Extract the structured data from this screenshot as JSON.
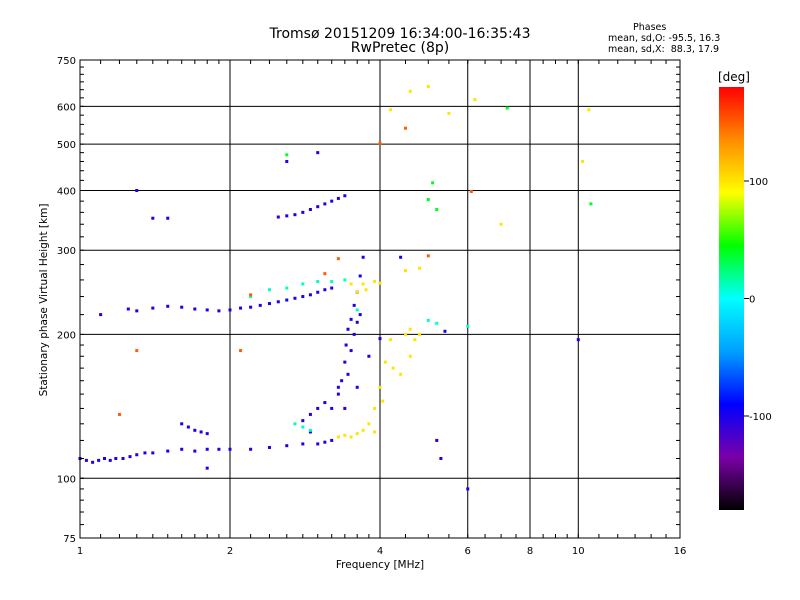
{
  "chart_data": {
    "type": "scatter",
    "title": "Tromsø 20151209 16:34:00-16:35:43",
    "subtitle": "RwPretec (8p)",
    "xlabel": "Frequency [MHz]",
    "ylabel": "Stationary phase Virtual Height [km]",
    "x_scale": "log",
    "y_scale": "log",
    "xlim": [
      1,
      16
    ],
    "ylim": [
      75,
      750
    ],
    "x_ticks": [
      1,
      2,
      4,
      6,
      8,
      10,
      16
    ],
    "y_ticks": [
      75,
      100,
      200,
      300,
      400,
      500,
      600,
      750
    ],
    "grid": true,
    "phase_stats": {
      "heading": "Phases",
      "line_o": "mean, sd,O: -95.5, 16.3",
      "line_x": "mean, sd,X:  88.3, 17.9"
    },
    "colorbar": {
      "unit": "[deg]",
      "ticks": [
        100,
        0,
        -100
      ],
      "range": [
        -180,
        180
      ],
      "colormap": [
        "#000000",
        "#7a00a8",
        "#0000ff",
        "#00a0ff",
        "#00ffff",
        "#00ff00",
        "#ffff00",
        "#ff8c00",
        "#ff0000"
      ]
    },
    "series": [
      {
        "phase_deg": -100,
        "points": [
          [
            1.0,
            110
          ],
          [
            1.03,
            109
          ],
          [
            1.06,
            108
          ],
          [
            1.09,
            109
          ],
          [
            1.12,
            110
          ],
          [
            1.15,
            109
          ],
          [
            1.18,
            110
          ],
          [
            1.22,
            110
          ],
          [
            1.26,
            111
          ],
          [
            1.3,
            112
          ],
          [
            1.35,
            113
          ],
          [
            1.4,
            113
          ],
          [
            1.5,
            114
          ],
          [
            1.6,
            115
          ],
          [
            1.7,
            114
          ],
          [
            1.8,
            115
          ],
          [
            1.9,
            115
          ],
          [
            2.0,
            115
          ],
          [
            2.2,
            115
          ],
          [
            2.4,
            116
          ],
          [
            2.6,
            117
          ],
          [
            2.8,
            118
          ],
          [
            3.0,
            118
          ],
          [
            3.1,
            119
          ],
          [
            3.2,
            120
          ],
          [
            1.25,
            226
          ],
          [
            1.3,
            224
          ],
          [
            1.4,
            227
          ],
          [
            1.5,
            229
          ],
          [
            1.6,
            228
          ],
          [
            1.7,
            226
          ],
          [
            1.8,
            225
          ],
          [
            1.9,
            224
          ],
          [
            2.0,
            225
          ],
          [
            2.1,
            227
          ],
          [
            2.2,
            228
          ],
          [
            2.3,
            230
          ],
          [
            2.4,
            232
          ],
          [
            2.5,
            234
          ],
          [
            2.6,
            236
          ],
          [
            2.7,
            238
          ],
          [
            2.8,
            240
          ],
          [
            2.9,
            242
          ],
          [
            3.0,
            245
          ],
          [
            3.1,
            248
          ],
          [
            3.2,
            250
          ],
          [
            2.5,
            352
          ],
          [
            2.6,
            354
          ],
          [
            2.7,
            356
          ],
          [
            2.8,
            360
          ],
          [
            2.9,
            365
          ],
          [
            3.0,
            370
          ],
          [
            3.1,
            375
          ],
          [
            3.2,
            380
          ],
          [
            3.3,
            385
          ],
          [
            3.4,
            390
          ],
          [
            3.3,
            150
          ],
          [
            3.35,
            160
          ],
          [
            3.4,
            175
          ],
          [
            3.42,
            190
          ],
          [
            3.45,
            205
          ],
          [
            3.5,
            215
          ],
          [
            3.55,
            230
          ],
          [
            3.6,
            245
          ],
          [
            3.65,
            265
          ],
          [
            3.7,
            290
          ],
          [
            3.4,
            140
          ],
          [
            3.45,
            165
          ],
          [
            3.5,
            185
          ],
          [
            3.55,
            200
          ],
          [
            3.6,
            212
          ],
          [
            3.65,
            220
          ],
          [
            1.6,
            130
          ],
          [
            1.65,
            128
          ],
          [
            1.7,
            126
          ],
          [
            1.75,
            125
          ],
          [
            1.8,
            124
          ],
          [
            2.8,
            132
          ],
          [
            2.9,
            136
          ],
          [
            3.0,
            140
          ],
          [
            3.1,
            144
          ],
          [
            1.1,
            220
          ],
          [
            1.4,
            350
          ],
          [
            1.5,
            350
          ],
          [
            1.3,
            400
          ],
          [
            2.6,
            460
          ],
          [
            3.0,
            480
          ],
          [
            1.8,
            105
          ],
          [
            2.9,
            125
          ],
          [
            3.2,
            140
          ],
          [
            3.3,
            155
          ],
          [
            3.6,
            155
          ],
          [
            3.8,
            180
          ],
          [
            5.2,
            120
          ],
          [
            5.3,
            110
          ],
          [
            6.0,
            95
          ],
          [
            10.0,
            195
          ],
          [
            4.0,
            196
          ],
          [
            5.4,
            203
          ],
          [
            4.4,
            290
          ]
        ]
      },
      {
        "phase_deg": 10,
        "points": [
          [
            2.2,
            240
          ],
          [
            2.4,
            248
          ],
          [
            2.6,
            250
          ],
          [
            2.8,
            255
          ],
          [
            3.0,
            258
          ],
          [
            3.2,
            258
          ],
          [
            3.4,
            260
          ],
          [
            2.7,
            130
          ],
          [
            2.8,
            128
          ],
          [
            2.9,
            126
          ],
          [
            3.6,
            225
          ],
          [
            5.0,
            214
          ],
          [
            5.2,
            211
          ],
          [
            6.0,
            208
          ]
        ]
      },
      {
        "phase_deg": 100,
        "points": [
          [
            3.3,
            122
          ],
          [
            3.4,
            123
          ],
          [
            3.5,
            122
          ],
          [
            3.6,
            124
          ],
          [
            3.7,
            126
          ],
          [
            3.8,
            130
          ],
          [
            3.9,
            140
          ],
          [
            4.0,
            155
          ],
          [
            4.1,
            175
          ],
          [
            4.2,
            195
          ],
          [
            3.5,
            255
          ],
          [
            3.7,
            255
          ],
          [
            3.9,
            258
          ],
          [
            4.0,
            256
          ],
          [
            3.6,
            245
          ],
          [
            3.75,
            248
          ],
          [
            4.5,
            200
          ],
          [
            4.6,
            205
          ],
          [
            4.7,
            195
          ],
          [
            4.4,
            165
          ],
          [
            4.6,
            180
          ],
          [
            4.8,
            200
          ],
          [
            4.2,
            590
          ],
          [
            4.6,
            645
          ],
          [
            5.0,
            660
          ],
          [
            5.5,
            580
          ],
          [
            6.2,
            620
          ],
          [
            10.5,
            590
          ],
          [
            10.2,
            460
          ],
          [
            7.0,
            340
          ],
          [
            4.5,
            272
          ],
          [
            4.8,
            275
          ],
          [
            3.9,
            125
          ],
          [
            4.05,
            145
          ],
          [
            4.25,
            170
          ]
        ]
      },
      {
        "phase_deg": 150,
        "points": [
          [
            2.1,
            185
          ],
          [
            1.3,
            185
          ],
          [
            3.1,
            268
          ],
          [
            3.3,
            288
          ],
          [
            4.0,
            502
          ],
          [
            4.5,
            540
          ],
          [
            6.1,
            398
          ],
          [
            5.0,
            292
          ],
          [
            2.2,
            242
          ],
          [
            1.2,
            136
          ]
        ]
      },
      {
        "phase_deg": 40,
        "points": [
          [
            5.0,
            383
          ],
          [
            5.2,
            365
          ],
          [
            10.6,
            375
          ],
          [
            7.2,
            595
          ],
          [
            5.1,
            415
          ],
          [
            2.6,
            475
          ]
        ]
      }
    ]
  }
}
